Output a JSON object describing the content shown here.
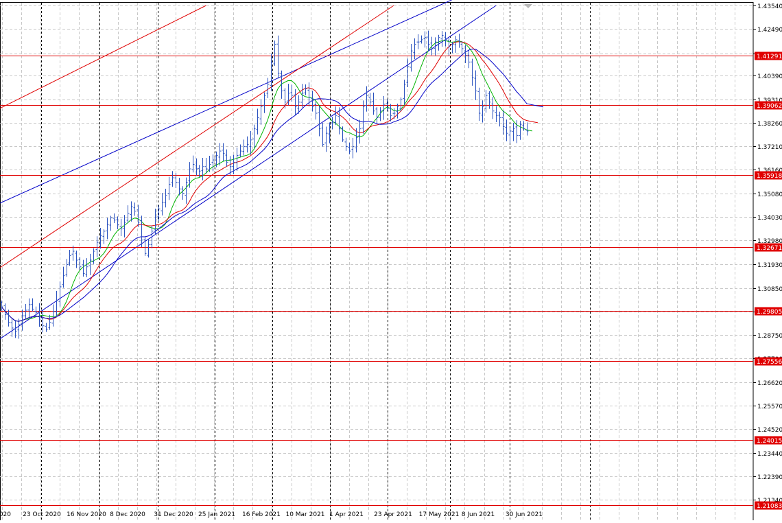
{
  "chart_data": {
    "type": "candlestick",
    "grid": true,
    "period": "daily",
    "colors": {
      "candles": "#2a52be",
      "ma_fast": "#00b400",
      "ma_mid": "#e00000",
      "ma_slow": "#0000c8",
      "horizontal_levels": "#e00000",
      "channel_blue": "#0000c8",
      "channel_red": "#e00000",
      "level_label_bg": "#e00000",
      "level_label_text": "#ffffff",
      "axis_text": "#000000",
      "grid": "#c8c8c8"
    },
    "y_axis": {
      "ylim": [
        1.2029,
        1.4354
      ],
      "tick_labels": [
        "1.43540",
        "1.42490",
        "1.41390",
        "1.40390",
        "1.39310",
        "1.38260",
        "1.37210",
        "1.36160",
        "1.35080",
        "1.34030",
        "1.32980",
        "1.31930",
        "1.30850",
        "1.29800",
        "1.28750",
        "1.27700",
        "1.26620",
        "1.25570",
        "1.24520",
        "1.23440",
        "1.22390",
        "1.21340",
        "1.20290"
      ]
    },
    "x_axis": {
      "tick_labels": [
        "2020",
        "23 Oct 2020",
        "16 Nov 2020",
        "8 Dec 2020",
        "31 Dec 2020",
        "25 Jan 2021",
        "16 Feb 2021",
        "10 Mar 2021",
        "1 Apr 2021",
        "23 Apr 2021",
        "17 May 2021",
        "8 Jun 2021",
        "30 Jun 2021"
      ]
    },
    "horizontal_levels": [
      "1.41291",
      "1.39062",
      "1.35918",
      "1.32671",
      "1.29805",
      "1.27556",
      "1.24015",
      "1.21083"
    ],
    "close_series": [
      1.3,
      1.2965,
      1.293,
      1.2905,
      1.289,
      1.292,
      1.296,
      1.2985,
      1.301,
      1.299,
      1.2975,
      1.2945,
      1.2915,
      1.29,
      1.293,
      1.298,
      1.303,
      1.309,
      1.314,
      1.319,
      1.323,
      1.325,
      1.321,
      1.318,
      1.315,
      1.318,
      1.321,
      1.325,
      1.329,
      1.332,
      1.334,
      1.337,
      1.34,
      1.339,
      1.337,
      1.335,
      1.338,
      1.342,
      1.345,
      1.343,
      1.338,
      1.33,
      1.324,
      1.328,
      1.334,
      1.34,
      1.344,
      1.347,
      1.35,
      1.355,
      1.358,
      1.356,
      1.353,
      1.351,
      1.356,
      1.362,
      1.364,
      1.362,
      1.361,
      1.363,
      1.362,
      1.364,
      1.366,
      1.368,
      1.37,
      1.369,
      1.365,
      1.363,
      1.365,
      1.368,
      1.37,
      1.372,
      1.373,
      1.375,
      1.38,
      1.385,
      1.39,
      1.395,
      1.4,
      1.41,
      1.418,
      1.405,
      1.397,
      1.392,
      1.396,
      1.395,
      1.39,
      1.392,
      1.396,
      1.398,
      1.394,
      1.39,
      1.387,
      1.38,
      1.373,
      1.378,
      1.382,
      1.383,
      1.386,
      1.38,
      1.375,
      1.372,
      1.37,
      1.372,
      1.376,
      1.38,
      1.39,
      1.395,
      1.392,
      1.388,
      1.385,
      1.388,
      1.391,
      1.389,
      1.386,
      1.387,
      1.39,
      1.393,
      1.4,
      1.408,
      1.415,
      1.418,
      1.419,
      1.42,
      1.421,
      1.418,
      1.416,
      1.419,
      1.421,
      1.422,
      1.42,
      1.417,
      1.418,
      1.42,
      1.419,
      1.416,
      1.413,
      1.41,
      1.403,
      1.397,
      1.387,
      1.39,
      1.395,
      1.392,
      1.388,
      1.386,
      1.385,
      1.381,
      1.378,
      1.379,
      1.38,
      1.377,
      1.382,
      1.38,
      1.379
    ],
    "channels": {
      "blue_channel_points": [
        [
          0,
          1.349
        ],
        [
          140,
          1.292
        ]
      ],
      "red_channel_points": [
        [
          0,
          1.332
        ],
        [
          140,
          1.385
        ]
      ]
    }
  }
}
